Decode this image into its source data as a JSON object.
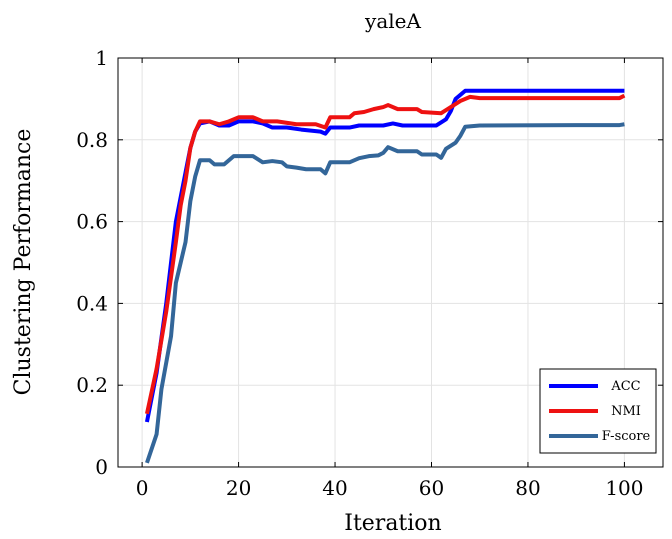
{
  "chart_data": {
    "type": "line",
    "title": "yaleA",
    "xlabel": "Iteration",
    "ylabel": "Clustering Performance",
    "xlim": [
      -5,
      108
    ],
    "ylim": [
      0,
      1
    ],
    "xticks": [
      0,
      20,
      40,
      60,
      80,
      100
    ],
    "yticks": [
      0,
      0.2,
      0.4,
      0.6,
      0.8,
      1
    ],
    "xtick_labels": [
      "0",
      "20",
      "40",
      "60",
      "80",
      "100"
    ],
    "ytick_labels": [
      "0",
      "0.2",
      "0.4",
      "0.6",
      "0.8",
      "1"
    ],
    "grid": true,
    "legend_position": "bottom-right",
    "series": [
      {
        "name": "ACC",
        "color": "#0000ff",
        "points": [
          [
            1,
            0.11
          ],
          [
            3,
            0.23
          ],
          [
            5,
            0.4
          ],
          [
            7,
            0.6
          ],
          [
            8,
            0.66
          ],
          [
            9,
            0.72
          ],
          [
            10,
            0.78
          ],
          [
            11,
            0.82
          ],
          [
            12,
            0.84
          ],
          [
            14,
            0.845
          ],
          [
            16,
            0.835
          ],
          [
            18,
            0.835
          ],
          [
            20,
            0.845
          ],
          [
            23,
            0.845
          ],
          [
            25,
            0.84
          ],
          [
            27,
            0.83
          ],
          [
            30,
            0.83
          ],
          [
            33,
            0.825
          ],
          [
            37,
            0.82
          ],
          [
            38,
            0.815
          ],
          [
            39,
            0.83
          ],
          [
            43,
            0.83
          ],
          [
            45,
            0.835
          ],
          [
            50,
            0.835
          ],
          [
            52,
            0.84
          ],
          [
            54,
            0.835
          ],
          [
            57,
            0.835
          ],
          [
            61,
            0.835
          ],
          [
            63,
            0.85
          ],
          [
            64,
            0.87
          ],
          [
            65,
            0.9
          ],
          [
            67,
            0.92
          ],
          [
            70,
            0.92
          ],
          [
            100,
            0.92
          ]
        ]
      },
      {
        "name": "NMI",
        "color": "#ee1111",
        "points": [
          [
            1,
            0.13
          ],
          [
            3,
            0.24
          ],
          [
            5,
            0.38
          ],
          [
            7,
            0.55
          ],
          [
            8,
            0.64
          ],
          [
            9,
            0.7
          ],
          [
            10,
            0.78
          ],
          [
            11,
            0.82
          ],
          [
            12,
            0.845
          ],
          [
            14,
            0.845
          ],
          [
            16,
            0.838
          ],
          [
            18,
            0.845
          ],
          [
            20,
            0.855
          ],
          [
            23,
            0.855
          ],
          [
            25,
            0.845
          ],
          [
            28,
            0.845
          ],
          [
            32,
            0.838
          ],
          [
            36,
            0.838
          ],
          [
            38,
            0.83
          ],
          [
            39,
            0.855
          ],
          [
            43,
            0.855
          ],
          [
            44,
            0.865
          ],
          [
            46,
            0.868
          ],
          [
            48,
            0.875
          ],
          [
            50,
            0.88
          ],
          [
            51,
            0.885
          ],
          [
            53,
            0.875
          ],
          [
            57,
            0.875
          ],
          [
            58,
            0.868
          ],
          [
            62,
            0.865
          ],
          [
            64,
            0.88
          ],
          [
            66,
            0.895
          ],
          [
            68,
            0.905
          ],
          [
            70,
            0.902
          ],
          [
            99,
            0.902
          ],
          [
            100,
            0.908
          ]
        ]
      },
      {
        "name": "F-score",
        "color": "#336699",
        "points": [
          [
            1,
            0.01
          ],
          [
            3,
            0.08
          ],
          [
            4,
            0.19
          ],
          [
            6,
            0.32
          ],
          [
            7,
            0.45
          ],
          [
            8,
            0.5
          ],
          [
            9,
            0.55
          ],
          [
            10,
            0.65
          ],
          [
            11,
            0.71
          ],
          [
            12,
            0.75
          ],
          [
            14,
            0.75
          ],
          [
            15,
            0.74
          ],
          [
            17,
            0.74
          ],
          [
            19,
            0.76
          ],
          [
            23,
            0.76
          ],
          [
            25,
            0.745
          ],
          [
            27,
            0.748
          ],
          [
            29,
            0.745
          ],
          [
            30,
            0.735
          ],
          [
            32,
            0.732
          ],
          [
            34,
            0.728
          ],
          [
            37,
            0.728
          ],
          [
            38,
            0.718
          ],
          [
            39,
            0.745
          ],
          [
            43,
            0.745
          ],
          [
            45,
            0.755
          ],
          [
            47,
            0.76
          ],
          [
            49,
            0.762
          ],
          [
            50,
            0.768
          ],
          [
            51,
            0.782
          ],
          [
            53,
            0.772
          ],
          [
            57,
            0.772
          ],
          [
            58,
            0.764
          ],
          [
            61,
            0.764
          ],
          [
            62,
            0.756
          ],
          [
            63,
            0.778
          ],
          [
            65,
            0.793
          ],
          [
            66,
            0.81
          ],
          [
            67,
            0.832
          ],
          [
            70,
            0.835
          ],
          [
            90,
            0.836
          ],
          [
            99,
            0.836
          ],
          [
            100,
            0.838
          ]
        ]
      }
    ]
  }
}
